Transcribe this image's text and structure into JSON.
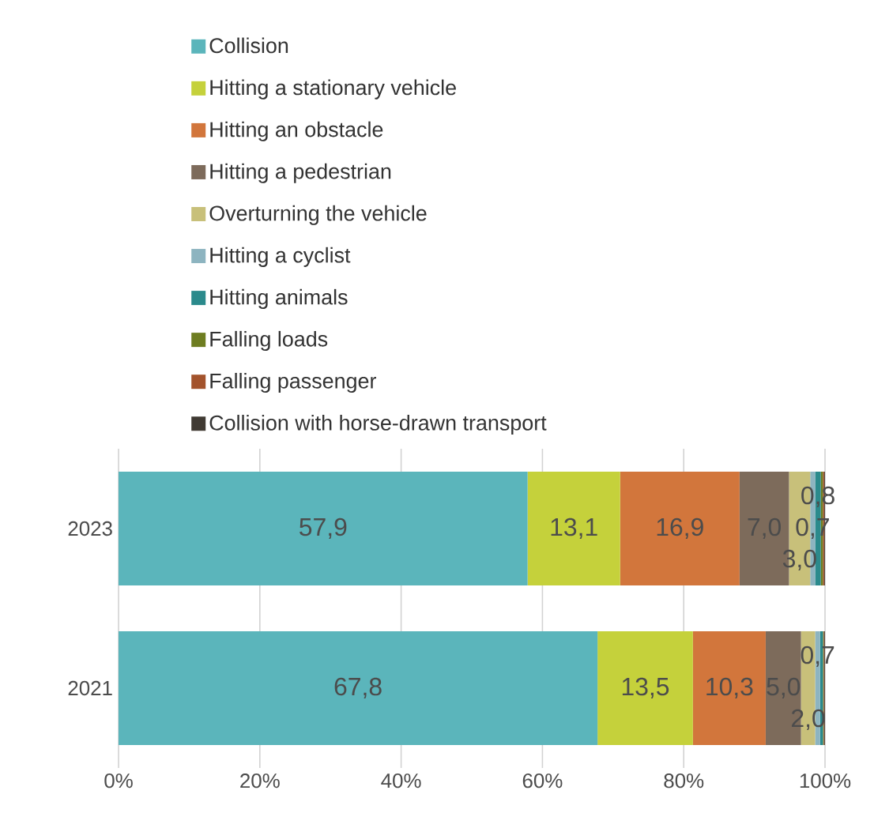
{
  "chart_data": {
    "type": "bar",
    "orientation": "horizontal",
    "stacked": true,
    "categories": [
      "2023",
      "2021"
    ],
    "series": [
      {
        "name": "Collision",
        "color": "#5bb5bb",
        "values": [
          57.9,
          67.8
        ],
        "value_labels": [
          "57,9",
          "67,8"
        ]
      },
      {
        "name": "Hitting a stationary vehicle",
        "color": "#c5d13b",
        "values": [
          13.1,
          13.5
        ],
        "value_labels": [
          "13,1",
          "13,5"
        ]
      },
      {
        "name": "Hitting an obstacle",
        "color": "#d2763c",
        "values": [
          16.9,
          10.3
        ],
        "value_labels": [
          "16,9",
          "10,3"
        ]
      },
      {
        "name": "Hitting a pedestrian",
        "color": "#7d6b5b",
        "values": [
          7.0,
          5.0
        ],
        "value_labels": [
          "7,0",
          "5,0"
        ]
      },
      {
        "name": "Overturning the vehicle",
        "color": "#c8c07a",
        "values": [
          3.0,
          2.0
        ],
        "value_labels": [
          "3,0",
          "2,0"
        ]
      },
      {
        "name": "Hitting a cyclist",
        "color": "#8db4c0",
        "values": [
          0.7,
          0.7
        ],
        "value_labels": [
          "0,7",
          "0,7"
        ]
      },
      {
        "name": "Hitting animals",
        "color": "#2b8a8c",
        "values": [
          0.8,
          0.4
        ],
        "value_labels": [
          "0,8",
          null
        ]
      },
      {
        "name": "Falling loads",
        "color": "#6e7d21",
        "values": [
          0.3,
          0.1
        ],
        "value_labels": [
          null,
          null
        ]
      },
      {
        "name": "Falling passenger",
        "color": "#a3532c",
        "values": [
          0.2,
          0.1
        ],
        "value_labels": [
          null,
          null
        ]
      },
      {
        "name": "Collision with horse-drawn transport",
        "color": "#403a33",
        "values": [
          0.1,
          0.1
        ],
        "value_labels": [
          null,
          null
        ]
      }
    ],
    "xlim": [
      0,
      100
    ],
    "xticks": [
      {
        "value": 0,
        "label": "0%"
      },
      {
        "value": 20,
        "label": "20%"
      },
      {
        "value": 40,
        "label": "40%"
      },
      {
        "value": 60,
        "label": "60%"
      },
      {
        "value": 80,
        "label": "80%"
      },
      {
        "value": 100,
        "label": "100%"
      }
    ],
    "grid": "x",
    "legend": "top"
  }
}
